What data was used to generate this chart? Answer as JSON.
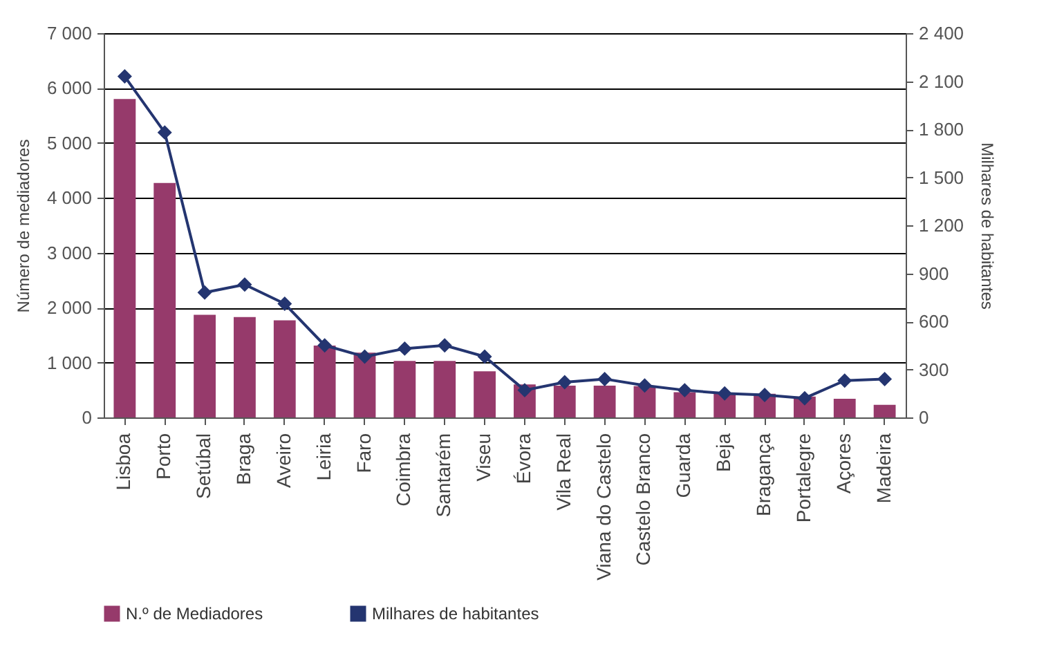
{
  "chart_data": {
    "type": "bar",
    "ylabel": "Número de mediadores",
    "y2label": "Milhares de habitantes",
    "categories": [
      "Lisboa",
      "Porto",
      "Setúbal",
      "Braga",
      "Aveiro",
      "Leiria",
      "Faro",
      "Coimbra",
      "Santarém",
      "Viseu",
      "Évora",
      "Vila Real",
      "Viana do Castelo",
      "Castelo Branco",
      "Guarda",
      "Beja",
      "Bragança",
      "Portalegre",
      "Açores",
      "Madeira"
    ],
    "series": [
      {
        "name": "N.º de Mediadores",
        "color": "#963a6b",
        "values": [
          5800,
          4270,
          1870,
          1830,
          1770,
          1310,
          1180,
          1030,
          1030,
          840,
          600,
          580,
          580,
          570,
          460,
          430,
          430,
          380,
          340,
          230
        ]
      },
      {
        "name": "Milhares de habitantes",
        "color": "#243570",
        "type": "line",
        "axis": "y2",
        "values": [
          2130,
          1780,
          780,
          830,
          710,
          450,
          380,
          430,
          450,
          380,
          170,
          220,
          240,
          200,
          170,
          150,
          140,
          120,
          230,
          240
        ]
      }
    ],
    "ylim": [
      0,
      7000
    ],
    "yticks": [
      0,
      {
        "value": 1000,
        "label": "1 000"
      },
      {
        "value": 2000,
        "label": "2 000"
      },
      {
        "value": 3000,
        "label": "3 000"
      },
      {
        "value": 4000,
        "label": "4 000"
      },
      {
        "value": 5000,
        "label": "5 000"
      },
      {
        "value": 6000,
        "label": "6 000"
      },
      {
        "value": 7000,
        "label": "7 000"
      }
    ],
    "y2lim": [
      0,
      2400
    ],
    "y2ticks": [
      0,
      300,
      600,
      900,
      {
        "value": 1200,
        "label": "1 200"
      },
      {
        "value": 1500,
        "label": "1 500"
      },
      {
        "value": 1800,
        "label": "1 800"
      },
      {
        "value": 2100,
        "label": "2 100"
      },
      {
        "value": 2400,
        "label": "2 400"
      }
    ],
    "grid": "y",
    "legend": "bottom",
    "marker": "diamond"
  }
}
